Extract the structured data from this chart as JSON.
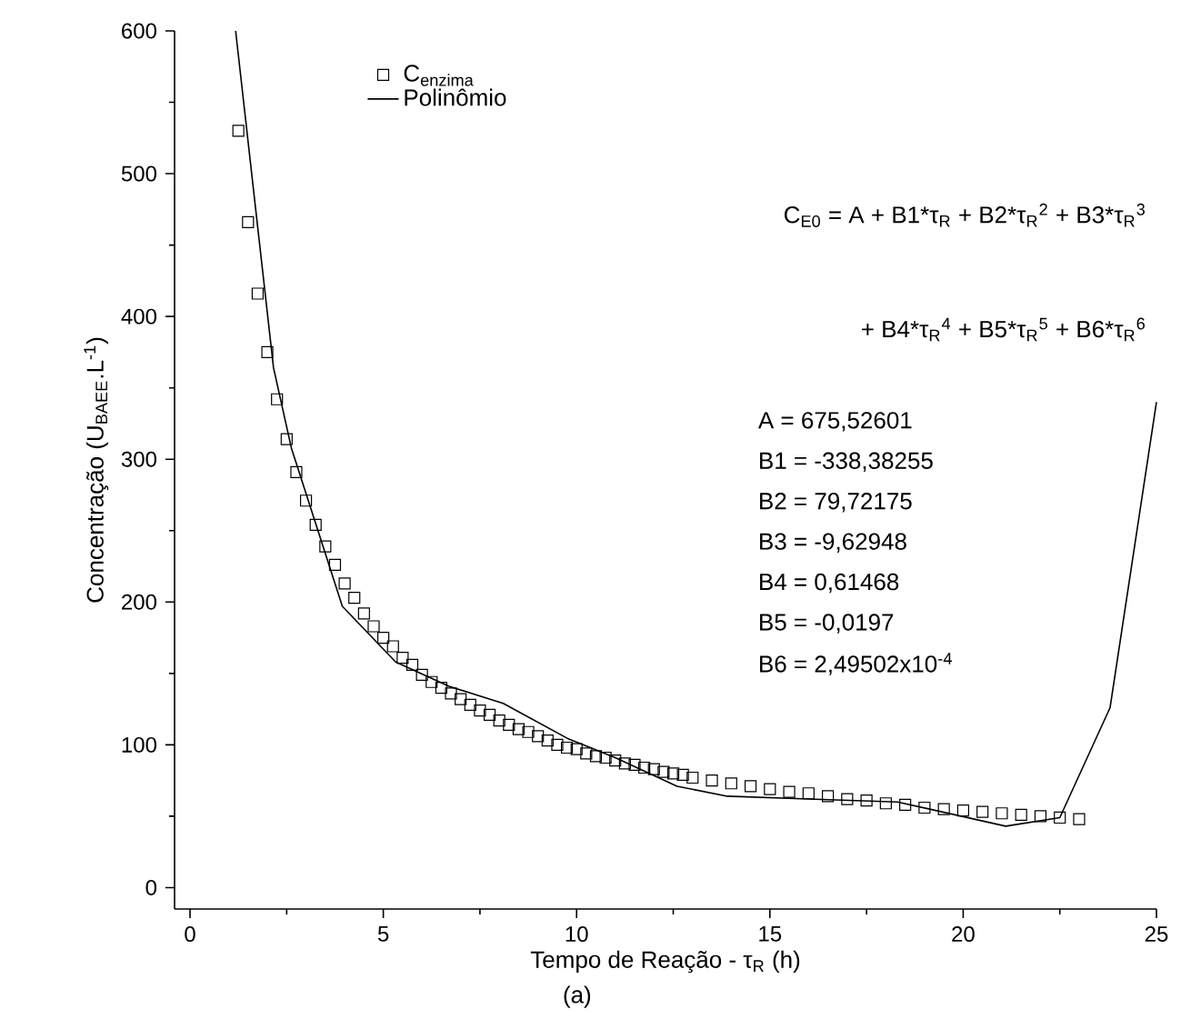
{
  "chart_data": {
    "type": "scatter",
    "xlabel": "Tempo de Reação - τ$_{R}$ (h)",
    "ylabel": "Concentração (U$_{BAEE}$.L$^{-1}$)",
    "xlim": [
      -0.4,
      25
    ],
    "ylim": [
      -15,
      600
    ],
    "xticks": [
      0,
      5,
      10,
      15,
      20,
      25
    ],
    "yticks": [
      0,
      100,
      200,
      300,
      400,
      500,
      600
    ],
    "legend": "top left",
    "series": [
      {
        "name": "C$_{enzima}$",
        "marker": "square",
        "color": "#000000",
        "x": [
          1.25,
          1.5,
          1.75,
          2.0,
          2.25,
          2.5,
          2.75,
          3.0,
          3.25,
          3.5,
          3.75,
          4.0,
          4.25,
          4.5,
          4.75,
          5.0,
          5.25,
          5.5,
          5.75,
          6.0,
          6.25,
          6.5,
          6.75,
          7.0,
          7.25,
          7.5,
          7.75,
          8.0,
          8.25,
          8.5,
          8.75,
          9.0,
          9.25,
          9.5,
          9.75,
          10.0,
          10.25,
          10.5,
          10.75,
          11.0,
          11.25,
          11.5,
          11.75,
          12.0,
          12.25,
          12.5,
          12.75,
          13.0,
          13.5,
          14.0,
          14.5,
          15.0,
          15.5,
          16.0,
          16.5,
          17.0,
          17.5,
          18.0,
          18.5,
          19.0,
          19.5,
          20.0,
          20.5,
          21.0,
          21.5,
          22.0,
          22.5,
          23.0
        ],
        "values": [
          530,
          466,
          416,
          375,
          342,
          314,
          291,
          271,
          254,
          239,
          226,
          213,
          203,
          192,
          183,
          175,
          169,
          161,
          156,
          149,
          144,
          140,
          136,
          132,
          128,
          124,
          121,
          117,
          114,
          111,
          109,
          106,
          103,
          100,
          98,
          97,
          94,
          92,
          91,
          89,
          87,
          86,
          84,
          83,
          81,
          80,
          79,
          77,
          75,
          73,
          71,
          69,
          67,
          66,
          64,
          62,
          61,
          59,
          58,
          56,
          55,
          54,
          53,
          52,
          51,
          50,
          49,
          48
        ]
      },
      {
        "name": "Polinômio",
        "type": "line",
        "marker": "none",
        "line_style": "solid",
        "color": "#000000",
        "x": [
          1.18,
          2.16,
          2.62,
          3.94,
          5.32,
          6.7,
          8.1,
          9.8,
          11.0,
          12.6,
          13.9,
          16.0,
          18.3,
          21.1,
          22.5,
          23.8,
          25.0
        ],
        "values": [
          600,
          364,
          308,
          197,
          158,
          141,
          129,
          104,
          91,
          71,
          64,
          62,
          60,
          43,
          49,
          126,
          340
        ]
      }
    ],
    "annotations": [
      "C$_{E0}$ = A + B1*τ$_{R}$ + B2*τ$_{R}$$^{2}$ + B3*τ$_{R}$$^{3}$",
      "+ B4*τ$_{R}$$^{4}$ + B5*τ$_{R}$$^{5}$ + B6*τ$_{R}$$^{6}$",
      "A = 675,52601",
      "B1 = -338,38255",
      "B2 = 79,72175",
      "B3 = -9,62948",
      "B4 = 0,61468",
      "B5 = -0,0197",
      "B6 = 2,49502x10$^{-4}$",
      "(a)"
    ]
  }
}
